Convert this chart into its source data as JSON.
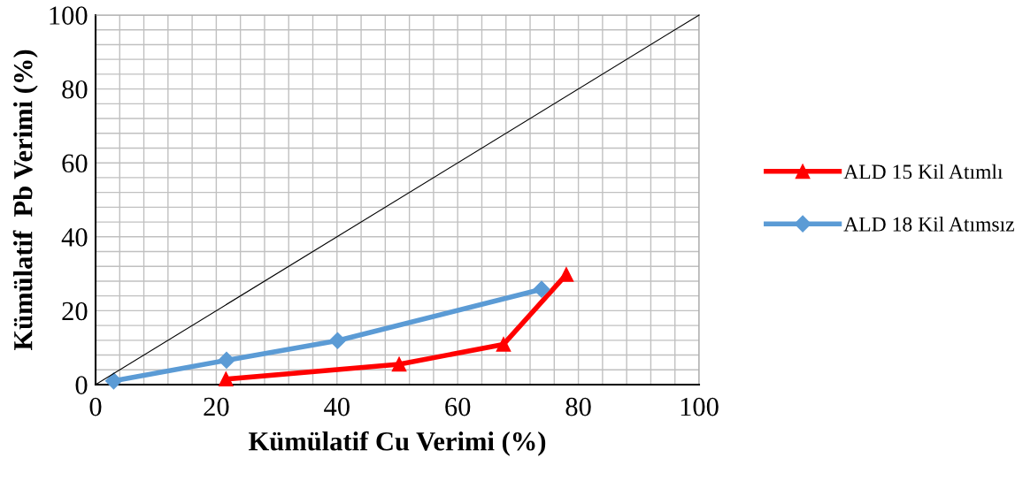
{
  "chart_data": {
    "type": "line",
    "xlabel": "Kümülatif Cu Verimi (%)",
    "ylabel": "Kümülatif  Pb Verimi (%)",
    "xlim": [
      0,
      100
    ],
    "ylim": [
      0,
      100
    ],
    "xticks": [
      0,
      {
        "value": 4,
        "label": null
      },
      {
        "value": 8,
        "label": null
      },
      {
        "value": 12,
        "label": null
      },
      {
        "value": 16,
        "label": null
      },
      20,
      {
        "value": 24,
        "label": null
      },
      {
        "value": 28,
        "label": null
      },
      {
        "value": 32,
        "label": null
      },
      {
        "value": 36,
        "label": null
      },
      40,
      {
        "value": 44,
        "label": null
      },
      {
        "value": 48,
        "label": null
      },
      {
        "value": 52,
        "label": null
      },
      {
        "value": 56,
        "label": null
      },
      60,
      {
        "value": 64,
        "label": null
      },
      {
        "value": 68,
        "label": null
      },
      {
        "value": 72,
        "label": null
      },
      {
        "value": 76,
        "label": null
      },
      80,
      {
        "value": 84,
        "label": null
      },
      {
        "value": 88,
        "label": null
      },
      {
        "value": 92,
        "label": null
      },
      {
        "value": 96,
        "label": null
      },
      100
    ],
    "yticks": [
      0,
      {
        "value": 4,
        "label": null
      },
      {
        "value": 8,
        "label": null
      },
      {
        "value": 12,
        "label": null
      },
      {
        "value": 16,
        "label": null
      },
      20,
      {
        "value": 24,
        "label": null
      },
      {
        "value": 28,
        "label": null
      },
      {
        "value": 32,
        "label": null
      },
      {
        "value": 36,
        "label": null
      },
      40,
      {
        "value": 44,
        "label": null
      },
      {
        "value": 48,
        "label": null
      },
      {
        "value": 52,
        "label": null
      },
      {
        "value": 56,
        "label": null
      },
      60,
      {
        "value": 64,
        "label": null
      },
      {
        "value": 68,
        "label": null
      },
      {
        "value": 72,
        "label": null
      },
      {
        "value": 76,
        "label": null
      },
      80,
      {
        "value": 84,
        "label": null
      },
      {
        "value": 88,
        "label": null
      },
      {
        "value": 92,
        "label": null
      },
      {
        "value": 96,
        "label": null
      },
      100
    ],
    "grid": true,
    "legend": "right",
    "series": [
      {
        "name": "ALD 15 Kil Atımlı",
        "color": "#ff0000",
        "marker": "triangle",
        "x": [
          21.6,
          50.3,
          67.6,
          78.0
        ],
        "values": [
          1.5,
          5.5,
          10.9,
          29.8
        ]
      },
      {
        "name": "ALD 18 Kil Atımsız",
        "color": "#5b9bd5",
        "marker": "diamond",
        "x": [
          3.0,
          21.7,
          40.1,
          73.9
        ],
        "values": [
          1.0,
          6.6,
          11.9,
          25.8
        ]
      },
      {
        "color": "#000000",
        "marker": "none",
        "x": [
          0,
          100
        ],
        "values": [
          0,
          100
        ]
      }
    ]
  }
}
